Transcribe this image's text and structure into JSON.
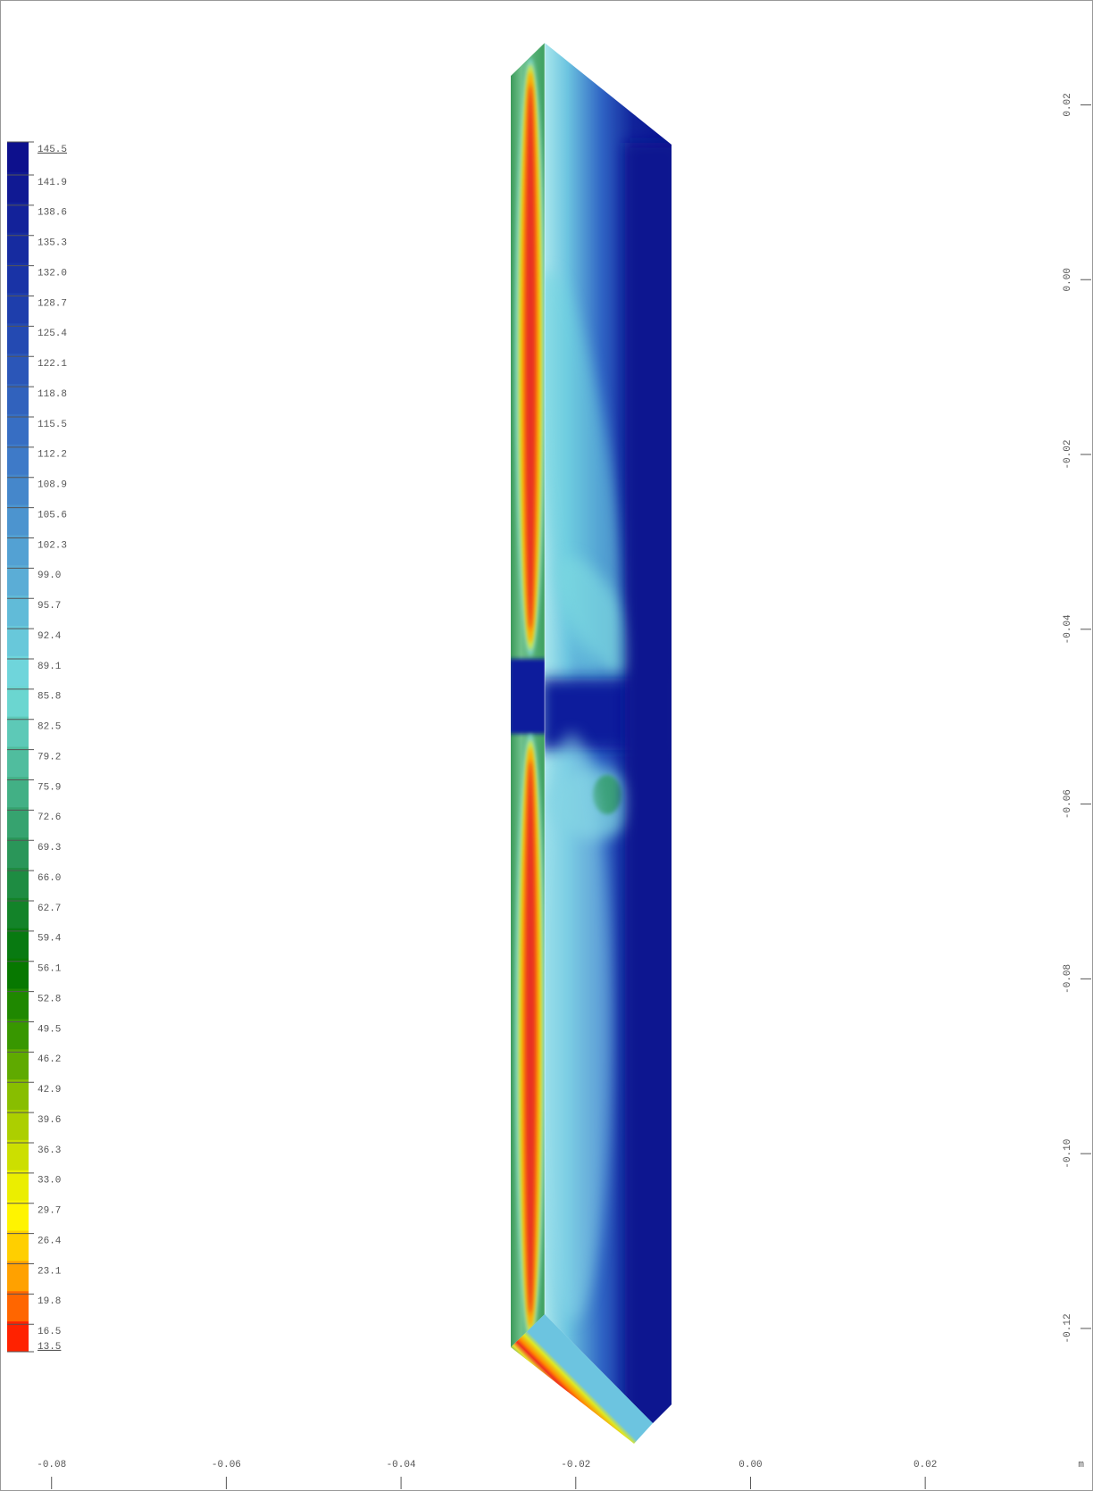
{
  "chart_data": {
    "type": "contour",
    "x_unit": "m",
    "xlim": [
      -0.0859,
      0.0392
    ],
    "xticks": [
      -0.08,
      -0.06,
      -0.04,
      -0.02,
      {
        "value": 0,
        "label": "0.00"
      },
      0.02
    ],
    "ylim": [
      -0.1386,
      0.032
    ],
    "yticks": [
      0.02,
      {
        "value": 0,
        "label": "0.00"
      },
      -0.02,
      -0.04,
      -0.06,
      -0.08,
      {
        "value": -0.1,
        "label": "-0.10"
      },
      -0.12
    ],
    "clim": [
      13.5,
      145.5
    ],
    "colorbar_ticks": [
      145.5,
      141.9,
      138.6,
      135.3,
      {
        "value": 132,
        "label": "132.0"
      },
      128.7,
      125.4,
      122.1,
      118.8,
      115.5,
      112.2,
      108.9,
      105.6,
      102.3,
      {
        "value": 99,
        "label": "99.0"
      },
      95.7,
      92.4,
      89.1,
      85.8,
      82.5,
      79.2,
      75.9,
      72.6,
      69.3,
      {
        "value": 66,
        "label": "66.0"
      },
      62.7,
      59.4,
      56.1,
      52.8,
      49.5,
      46.2,
      42.9,
      39.6,
      36.3,
      {
        "value": 33,
        "label": "33.0"
      },
      29.7,
      26.4,
      23.1,
      19.8,
      16.5,
      13.5
    ]
  }
}
